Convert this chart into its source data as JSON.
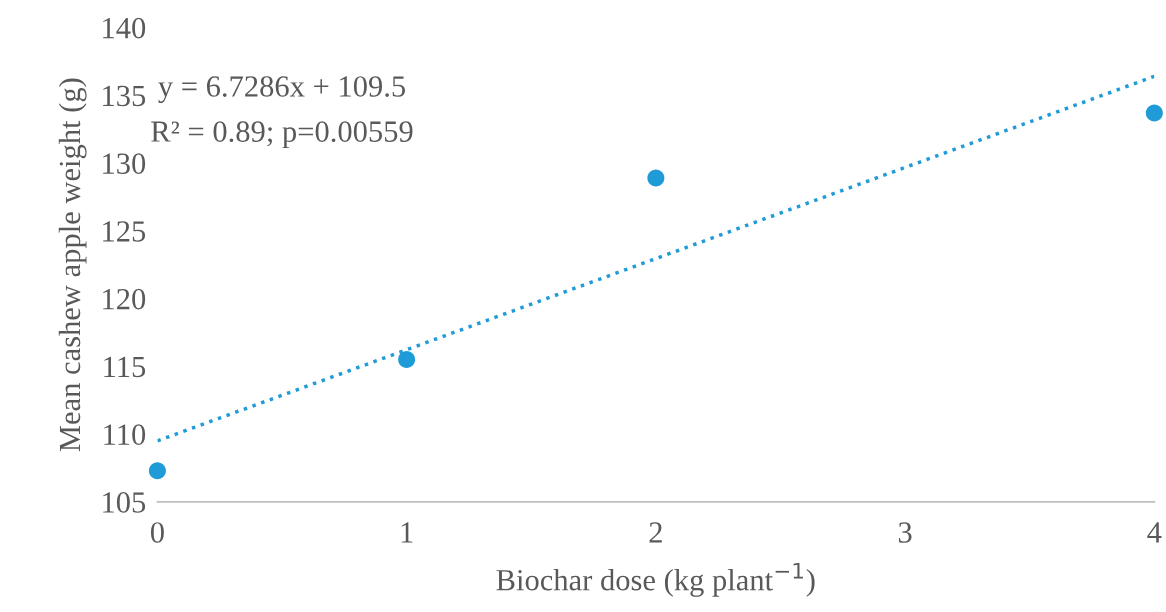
{
  "chart_data": {
    "type": "scatter",
    "xlabel": "Biochar dose (kg plant$^{−1}$)",
    "ylabel": "Mean cashew apple weight (g)",
    "annotations": [
      "y = 6.7286x + 109.5",
      "R² = 0.89; p=0.00559"
    ],
    "series": [
      {
        "color": "#1f9bd7",
        "marker": "circle",
        "x": [
          0,
          1,
          2,
          4
        ],
        "values": [
          107.3,
          115.5,
          128.9,
          133.7
        ]
      },
      {
        "type": "line",
        "color": "#1f9bd7",
        "marker": "none",
        "line_style": "dotted",
        "x": [
          0,
          4
        ],
        "values": [
          109.5,
          136.4
        ]
      }
    ],
    "xlim": [
      0,
      4
    ],
    "xticks": [
      0,
      1,
      2,
      3,
      4
    ],
    "ylim": [
      105,
      140
    ],
    "yticks": [
      105,
      110,
      115,
      120,
      125,
      130,
      135,
      140
    ],
    "grid": false,
    "legend": false
  }
}
